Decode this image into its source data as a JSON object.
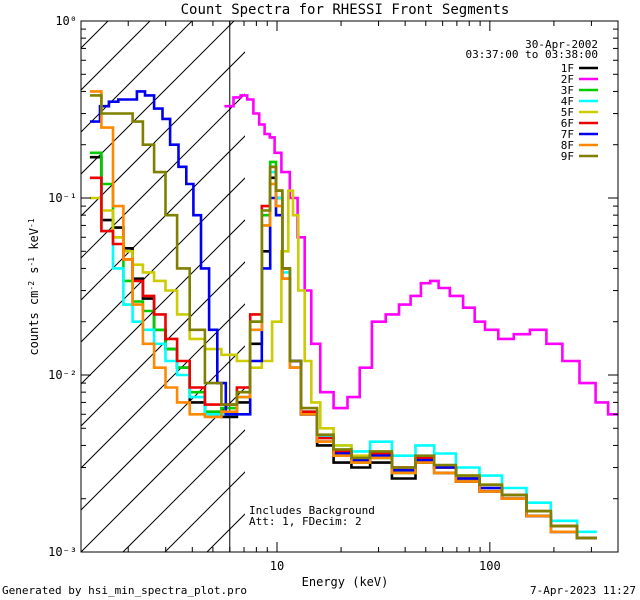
{
  "chart_data": {
    "type": "line",
    "title": "Count Spectra for RHESSI Front Segments",
    "xlabel": "Energy (keV)",
    "ylabel": "counts cm^-2 s^-1 keV^-1",
    "xscale": "log",
    "yscale": "log",
    "xlim": [
      1.2,
      400
    ],
    "ylim": [
      0.001,
      1
    ],
    "x_ticks": [
      {
        "value": 10,
        "label": "10"
      },
      {
        "value": 100,
        "label": "100"
      }
    ],
    "y_ticks": [
      {
        "value": 0.001,
        "label": "10⁻³"
      },
      {
        "value": 0.01,
        "label": "10⁻²"
      },
      {
        "value": 0.1,
        "label": "10⁻¹"
      },
      {
        "value": 1,
        "label": "10⁰"
      }
    ],
    "legend_date": "30-Apr-2002",
    "legend_time": "03:37:00 to 03:38:00",
    "legend_position": "top-right",
    "annotations": [
      "Includes Background",
      "Att: 1, FDecim: 2"
    ],
    "shaded_region_below_keV": 6,
    "series": [
      {
        "name": "1F",
        "color": "#000000",
        "x": [
          1.4,
          1.6,
          1.8,
          2.0,
          2.2,
          2.5,
          2.8,
          3.2,
          3.6,
          4.2,
          5.0,
          6.0,
          7.0,
          8.0,
          9.0,
          9.6,
          10.2,
          11.0,
          12.0,
          14.0,
          17.0,
          20.0,
          25.0,
          30.0,
          40.0,
          50.0,
          60.0,
          80.0,
          100.0,
          130.0,
          170.0,
          220.0,
          300.0
        ],
        "y": [
          0.17,
          0.075,
          0.068,
          0.052,
          0.035,
          0.027,
          0.018,
          0.014,
          0.011,
          0.007,
          0.006,
          0.0058,
          0.007,
          0.015,
          0.05,
          0.13,
          0.1,
          0.04,
          0.012,
          0.006,
          0.004,
          0.0032,
          0.003,
          0.0032,
          0.0026,
          0.0032,
          0.0028,
          0.0025,
          0.0022,
          0.002,
          0.0016,
          0.0013,
          0.0012
        ]
      },
      {
        "name": "2F",
        "color": "#ff00ff",
        "x": [
          6.0,
          6.5,
          7.0,
          7.5,
          8.0,
          8.5,
          9.0,
          9.5,
          10.0,
          11.0,
          12.0,
          13.0,
          14.0,
          15.0,
          17.0,
          20.0,
          23.0,
          26.0,
          30.0,
          35.0,
          40.0,
          45.0,
          50.0,
          55.0,
          60.0,
          70.0,
          80.0,
          90.0,
          100.0,
          120.0,
          140.0,
          170.0,
          200.0,
          240.0,
          290.0,
          340.0,
          380.0
        ],
        "y": [
          0.33,
          0.37,
          0.38,
          0.36,
          0.3,
          0.26,
          0.23,
          0.22,
          0.18,
          0.14,
          0.1,
          0.06,
          0.03,
          0.015,
          0.008,
          0.0065,
          0.0075,
          0.011,
          0.02,
          0.022,
          0.025,
          0.028,
          0.033,
          0.034,
          0.031,
          0.028,
          0.024,
          0.02,
          0.018,
          0.016,
          0.017,
          0.018,
          0.015,
          0.012,
          0.009,
          0.007,
          0.006
        ]
      },
      {
        "name": "3F",
        "color": "#00cc00",
        "x": [
          1.4,
          1.6,
          1.8,
          2.0,
          2.2,
          2.5,
          2.8,
          3.2,
          3.6,
          4.2,
          5.0,
          6.0,
          7.0,
          8.0,
          9.0,
          9.6,
          10.2,
          11.0,
          12.0,
          14.0,
          17.0,
          20.0,
          25.0,
          30.0,
          40.0,
          50.0,
          60.0,
          80.0,
          100.0,
          130.0,
          170.0,
          220.0,
          300.0
        ],
        "y": [
          0.18,
          0.12,
          0.06,
          0.034,
          0.026,
          0.023,
          0.018,
          0.014,
          0.011,
          0.008,
          0.0062,
          0.0065,
          0.008,
          0.02,
          0.08,
          0.16,
          0.11,
          0.04,
          0.011,
          0.006,
          0.0042,
          0.0035,
          0.0032,
          0.0034,
          0.0028,
          0.0033,
          0.003,
          0.0026,
          0.0023,
          0.0021,
          0.0017,
          0.0014,
          0.0012
        ]
      },
      {
        "name": "4F",
        "color": "#00ffff",
        "x": [
          1.4,
          1.6,
          1.8,
          2.0,
          2.2,
          2.5,
          2.8,
          3.2,
          3.6,
          4.2,
          5.0,
          6.0,
          7.0,
          8.0,
          9.0,
          9.6,
          10.2,
          11.0,
          12.0,
          14.0,
          17.0,
          20.0,
          25.0,
          30.0,
          40.0,
          50.0,
          60.0,
          80.0,
          100.0,
          130.0,
          170.0,
          220.0,
          300.0
        ],
        "y": [
          0.13,
          0.065,
          0.04,
          0.025,
          0.02,
          0.018,
          0.015,
          0.012,
          0.01,
          0.0075,
          0.006,
          0.006,
          0.0075,
          0.018,
          0.07,
          0.14,
          0.1,
          0.038,
          0.011,
          0.0062,
          0.0045,
          0.004,
          0.0037,
          0.0042,
          0.0035,
          0.004,
          0.0036,
          0.003,
          0.0027,
          0.0023,
          0.0019,
          0.0015,
          0.0013
        ]
      },
      {
        "name": "5F",
        "color": "#cccc00",
        "x": [
          1.4,
          1.6,
          1.8,
          2.0,
          2.2,
          2.5,
          2.8,
          3.2,
          3.6,
          4.2,
          5.0,
          6.0,
          7.0,
          8.0,
          9.0,
          10.0,
          11.0,
          11.6,
          12.2,
          13.0,
          14.0,
          15.0,
          17.0,
          20.0,
          25.0,
          30.0,
          40.0,
          50.0,
          60.0,
          80.0,
          100.0,
          130.0,
          170.0,
          220.0,
          300.0
        ],
        "y": [
          0.1,
          0.085,
          0.06,
          0.05,
          0.042,
          0.038,
          0.034,
          0.03,
          0.022,
          0.016,
          0.014,
          0.013,
          0.012,
          0.011,
          0.012,
          0.02,
          0.05,
          0.11,
          0.08,
          0.03,
          0.012,
          0.007,
          0.005,
          0.004,
          0.0035,
          0.0036,
          0.003,
          0.0034,
          0.003,
          0.0027,
          0.0024,
          0.002,
          0.0017,
          0.0014,
          0.0012
        ]
      },
      {
        "name": "6F",
        "color": "#ee0000",
        "x": [
          1.4,
          1.6,
          1.8,
          2.0,
          2.2,
          2.5,
          2.8,
          3.2,
          3.6,
          4.2,
          5.0,
          6.0,
          7.0,
          8.0,
          9.0,
          9.6,
          10.2,
          11.0,
          12.0,
          14.0,
          17.0,
          20.0,
          25.0,
          30.0,
          40.0,
          50.0,
          60.0,
          80.0,
          100.0,
          130.0,
          170.0,
          220.0,
          300.0
        ],
        "y": [
          0.13,
          0.065,
          0.055,
          0.045,
          0.034,
          0.028,
          0.022,
          0.016,
          0.012,
          0.0085,
          0.0068,
          0.0068,
          0.0085,
          0.022,
          0.09,
          0.15,
          0.11,
          0.04,
          0.011,
          0.0062,
          0.0044,
          0.0037,
          0.0033,
          0.0036,
          0.003,
          0.0034,
          0.003,
          0.0026,
          0.0023,
          0.0021,
          0.0017,
          0.0014,
          0.0012
        ]
      },
      {
        "name": "7F",
        "color": "#0000ee",
        "x": [
          1.4,
          1.55,
          1.7,
          1.9,
          2.1,
          2.3,
          2.5,
          2.8,
          3.0,
          3.3,
          3.6,
          3.9,
          4.2,
          4.6,
          5.0,
          5.5,
          6.0,
          7.0,
          8.0,
          9.0,
          9.6,
          10.2,
          11.0,
          12.0,
          14.0,
          17.0,
          20.0,
          25.0,
          30.0,
          40.0,
          50.0,
          60.0,
          80.0,
          100.0,
          130.0,
          170.0,
          220.0,
          300.0
        ],
        "y": [
          0.27,
          0.33,
          0.35,
          0.36,
          0.36,
          0.4,
          0.38,
          0.32,
          0.28,
          0.2,
          0.15,
          0.12,
          0.08,
          0.04,
          0.018,
          0.009,
          0.006,
          0.006,
          0.012,
          0.04,
          0.1,
          0.08,
          0.035,
          0.012,
          0.006,
          0.0042,
          0.0036,
          0.0033,
          0.0035,
          0.0029,
          0.0033,
          0.003,
          0.0026,
          0.0023,
          0.002,
          0.0016,
          0.0013,
          0.0012
        ]
      },
      {
        "name": "8F",
        "color": "#ff8800",
        "x": [
          1.4,
          1.6,
          1.8,
          2.0,
          2.2,
          2.5,
          2.8,
          3.2,
          3.6,
          4.2,
          5.0,
          6.0,
          7.0,
          8.0,
          9.0,
          9.6,
          10.2,
          11.0,
          12.0,
          14.0,
          17.0,
          20.0,
          25.0,
          30.0,
          40.0,
          50.0,
          60.0,
          80.0,
          100.0,
          130.0,
          170.0,
          220.0,
          300.0
        ],
        "y": [
          0.4,
          0.25,
          0.09,
          0.045,
          0.025,
          0.015,
          0.011,
          0.0085,
          0.007,
          0.006,
          0.0058,
          0.0062,
          0.0075,
          0.018,
          0.07,
          0.12,
          0.09,
          0.035,
          0.011,
          0.006,
          0.0042,
          0.0035,
          0.0032,
          0.0034,
          0.0028,
          0.0032,
          0.0028,
          0.0025,
          0.0022,
          0.002,
          0.0016,
          0.0013,
          0.0012
        ]
      },
      {
        "name": "9F",
        "color": "#808000",
        "x": [
          1.4,
          1.6,
          1.8,
          2.0,
          2.2,
          2.5,
          2.8,
          3.2,
          3.6,
          4.2,
          5.0,
          6.0,
          7.0,
          8.0,
          9.0,
          9.6,
          10.2,
          11.0,
          12.0,
          14.0,
          17.0,
          20.0,
          25.0,
          30.0,
          40.0,
          50.0,
          60.0,
          80.0,
          100.0,
          130.0,
          170.0,
          220.0,
          300.0
        ],
        "y": [
          0.38,
          0.3,
          0.3,
          0.3,
          0.27,
          0.2,
          0.14,
          0.08,
          0.04,
          0.018,
          0.009,
          0.0068,
          0.008,
          0.02,
          0.085,
          0.15,
          0.11,
          0.04,
          0.012,
          0.0065,
          0.0046,
          0.0038,
          0.0034,
          0.0037,
          0.003,
          0.0035,
          0.0031,
          0.0027,
          0.0024,
          0.0021,
          0.0017,
          0.0014,
          0.0012
        ]
      }
    ]
  },
  "footer": {
    "generated_by": "Generated by hsi_min_spectra_plot.pro",
    "timestamp": "7-Apr-2023 11:27"
  }
}
